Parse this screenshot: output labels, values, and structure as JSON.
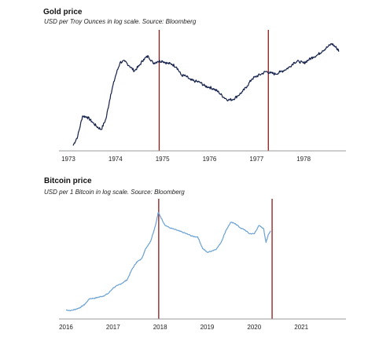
{
  "chart_data": [
    {
      "type": "line",
      "title": "Gold price",
      "subtitle": "USD per Troy Ounces in log scale. Source: Bloomberg",
      "xlabel": "",
      "ylabel": "",
      "log_scale_y": true,
      "x_tick_labels": [
        "1973",
        "1974",
        "1975",
        "1976",
        "1977",
        "1978"
      ],
      "xlim": [
        1972.8,
        1978.9
      ],
      "ylim": [
        60,
        260
      ],
      "series": [
        {
          "color": "#13204a",
          "x": [
            1973.1,
            1973.2,
            1973.3,
            1973.4,
            1973.5,
            1973.6,
            1973.7,
            1973.8,
            1973.9,
            1974.0,
            1974.1,
            1974.2,
            1974.3,
            1974.4,
            1974.5,
            1974.6,
            1974.7,
            1974.8,
            1974.9,
            1975.0,
            1975.1,
            1975.2,
            1975.3,
            1975.4,
            1975.5,
            1975.6,
            1975.7,
            1975.8,
            1975.9,
            1976.0,
            1976.1,
            1976.2,
            1976.3,
            1976.4,
            1976.5,
            1976.6,
            1976.7,
            1976.8,
            1976.9,
            1977.0,
            1977.1,
            1977.2,
            1977.3,
            1977.4,
            1977.5,
            1977.6,
            1977.7,
            1977.8,
            1977.9,
            1978.0,
            1978.1,
            1978.2,
            1978.3,
            1978.4,
            1978.5,
            1978.6,
            1978.7,
            1978.75
          ],
          "values": [
            64,
            72,
            92,
            91,
            86,
            81,
            78,
            89,
            120,
            150,
            178,
            180,
            170,
            160,
            170,
            185,
            192,
            176,
            180,
            181,
            176,
            174,
            168,
            152,
            150,
            143,
            141,
            139,
            133,
            131,
            128,
            123,
            116,
            112,
            113,
            118,
            124,
            133,
            145,
            150,
            154,
            159,
            156,
            154,
            158,
            162,
            168,
            178,
            180,
            176,
            183,
            190,
            195,
            205,
            214,
            224,
            212,
            205
          ]
        }
      ],
      "vertical_markers": [
        {
          "x": 1974.93,
          "color": "#8b1a1a"
        },
        {
          "x": 1977.25,
          "color": "#8b1a1a"
        }
      ]
    },
    {
      "type": "line",
      "title": "Bitcoin price",
      "subtitle": "USD per 1 Bitcoin in log scale. Source: Bloomberg",
      "xlabel": "",
      "ylabel": "",
      "log_scale_y": true,
      "x_tick_labels": [
        "2016",
        "2017",
        "2018",
        "2019",
        "2020",
        "2021"
      ],
      "xlim": [
        2015.85,
        2021.95
      ],
      "ylim": [
        300,
        25000
      ],
      "series": [
        {
          "color": "#6aa1d3",
          "x": [
            2016.0,
            2016.1,
            2016.2,
            2016.3,
            2016.4,
            2016.5,
            2016.6,
            2016.7,
            2016.8,
            2016.9,
            2017.0,
            2017.1,
            2017.2,
            2017.3,
            2017.4,
            2017.5,
            2017.6,
            2017.7,
            2017.8,
            2017.9,
            2017.96,
            2018.0,
            2018.1,
            2018.2,
            2018.3,
            2018.4,
            2018.5,
            2018.6,
            2018.7,
            2018.8,
            2018.9,
            2019.0,
            2019.1,
            2019.2,
            2019.3,
            2019.4,
            2019.5,
            2019.6,
            2019.7,
            2019.8,
            2019.9,
            2020.0,
            2020.1,
            2020.2,
            2020.25,
            2020.3,
            2020.35
          ],
          "values": [
            420,
            410,
            430,
            460,
            520,
            640,
            650,
            680,
            710,
            780,
            950,
            1050,
            1150,
            1300,
            1900,
            2500,
            2800,
            4200,
            5500,
            9800,
            16000,
            14000,
            10000,
            9000,
            8500,
            8000,
            7500,
            7000,
            6500,
            6400,
            4200,
            3600,
            3800,
            4100,
            5300,
            8200,
            11000,
            10500,
            9000,
            8300,
            7200,
            7200,
            9800,
            8700,
            5200,
            7000,
            8000
          ]
        }
      ],
      "vertical_markers": [
        {
          "x": 2017.97,
          "color": "#8b1a1a"
        },
        {
          "x": 2020.38,
          "color": "#8b1a1a"
        }
      ]
    }
  ]
}
